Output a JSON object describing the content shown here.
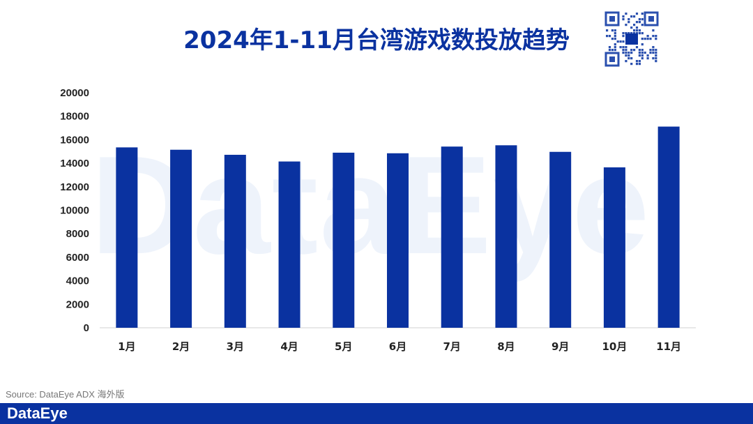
{
  "chart_data": {
    "type": "bar",
    "title": "2024年1-11月台湾游戏数投放趋势",
    "categories": [
      "1月",
      "2月",
      "3月",
      "4月",
      "5月",
      "6月",
      "7月",
      "8月",
      "9月",
      "10月",
      "11月"
    ],
    "values": [
      15350,
      15150,
      14720,
      14150,
      14900,
      14850,
      15420,
      15530,
      14970,
      13650,
      17120
    ],
    "yticks": [
      "0",
      "2000",
      "4000",
      "6000",
      "8000",
      "10000",
      "12000",
      "14000",
      "16000",
      "18000",
      "20000"
    ],
    "ylim": [
      0,
      20000
    ],
    "xlabel": "",
    "ylabel": "",
    "bar_color": "#0a32a0",
    "grid": false,
    "legend": "none"
  },
  "watermark": "DataEye",
  "source": "Source: DataEye ADX 海外版",
  "footer": {
    "brand": "DataEye",
    "background": "#0a32a0"
  },
  "qr_icon": "qr-code-icon"
}
